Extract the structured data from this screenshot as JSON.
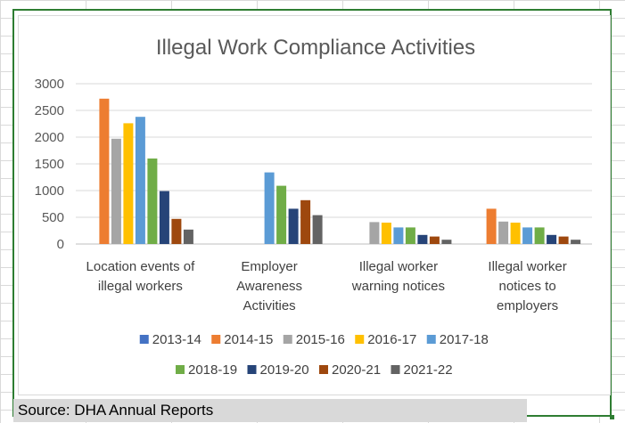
{
  "chart_data": {
    "type": "bar",
    "title": "Illegal Work Compliance Activities",
    "categories": [
      [
        "Location events of",
        "illegal workers"
      ],
      [
        "Employer",
        "Awareness",
        "Activities"
      ],
      [
        "Illegal worker",
        "warning notices"
      ],
      [
        "Illegal worker",
        "notices to",
        "employers"
      ]
    ],
    "series": [
      {
        "name": "2013-14",
        "color": "#4472c4",
        "values": [
          0,
          0,
          0,
          0
        ]
      },
      {
        "name": "2014-15",
        "color": "#ed7d31",
        "values": [
          2720,
          0,
          0,
          660
        ]
      },
      {
        "name": "2015-16",
        "color": "#a5a5a5",
        "values": [
          1970,
          0,
          410,
          420
        ]
      },
      {
        "name": "2016-17",
        "color": "#ffc000",
        "values": [
          2260,
          0,
          400,
          400
        ]
      },
      {
        "name": "2017-18",
        "color": "#5b9bd5",
        "values": [
          2380,
          1340,
          310,
          310
        ]
      },
      {
        "name": "2018-19",
        "color": "#70ad47",
        "values": [
          1600,
          1090,
          310,
          310
        ]
      },
      {
        "name": "2019-20",
        "color": "#264478",
        "values": [
          990,
          660,
          170,
          170
        ]
      },
      {
        "name": "2020-21",
        "color": "#9e480e",
        "values": [
          470,
          820,
          140,
          140
        ]
      },
      {
        "name": "2021-22",
        "color": "#636363",
        "values": [
          270,
          540,
          80,
          80
        ]
      }
    ],
    "ylim": [
      0,
      3000
    ],
    "yticks": [
      0,
      500,
      1000,
      1500,
      2000,
      2500,
      3000
    ],
    "xlabel": "",
    "ylabel": "",
    "grid": true,
    "legend": "bottom"
  },
  "source": "Source: DHA Annual Reports"
}
